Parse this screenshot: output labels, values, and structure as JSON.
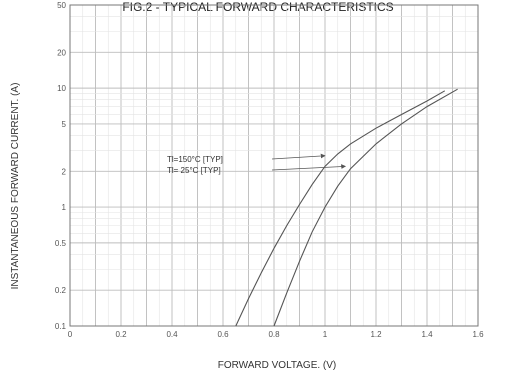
{
  "chart_data": {
    "type": "line",
    "title": "FIG.2 - TYPICAL FORWARD CHARACTERISTICS",
    "xlabel": "FORWARD VOLTAGE. (V)",
    "ylabel": "INSTANTANEOUS FORWARD CURRENT. (A)",
    "xlim": [
      0,
      1.6
    ],
    "ylim": [
      0.1,
      50
    ],
    "yscale": "log",
    "grid": true,
    "x_ticks": [
      "0",
      "0.2",
      "0.4",
      "0.6",
      "0.8",
      "1",
      "1.2",
      "1.4",
      "1.6"
    ],
    "y_ticks": [
      {
        "v": 0.1,
        "label": "0.1"
      },
      {
        "v": 0.2,
        "label": "0.2"
      },
      {
        "v": 0.5,
        "label": "0.5"
      },
      {
        "v": 1,
        "label": "1"
      },
      {
        "v": 2,
        "label": "2"
      },
      {
        "v": 5,
        "label": "5"
      },
      {
        "v": 10,
        "label": "10"
      },
      {
        "v": 20,
        "label": "20"
      },
      {
        "v": 50,
        "label": "50"
      }
    ],
    "series": [
      {
        "name": "Tl=150°C [TYP]",
        "color": "#555555",
        "x": [
          0.65,
          0.7,
          0.75,
          0.8,
          0.85,
          0.9,
          0.95,
          1.0,
          1.05,
          1.1,
          1.2,
          1.3,
          1.4,
          1.47
        ],
        "y": [
          0.1,
          0.17,
          0.28,
          0.45,
          0.7,
          1.05,
          1.55,
          2.2,
          2.8,
          3.4,
          4.6,
          6.0,
          7.8,
          9.5
        ]
      },
      {
        "name": "Tl= 25°C [TYP]",
        "color": "#555555",
        "x": [
          0.8,
          0.85,
          0.9,
          0.95,
          1.0,
          1.05,
          1.1,
          1.2,
          1.3,
          1.4,
          1.52
        ],
        "y": [
          0.1,
          0.19,
          0.35,
          0.62,
          1.0,
          1.5,
          2.1,
          3.4,
          5.0,
          7.0,
          9.8
        ]
      }
    ],
    "annotations": [
      {
        "text": "Tl=150°C [TYP]",
        "target_x": 1.0,
        "target_y": 2.7
      },
      {
        "text": "Tl= 25°C [TYP]",
        "target_x": 1.08,
        "target_y": 2.2
      }
    ]
  }
}
